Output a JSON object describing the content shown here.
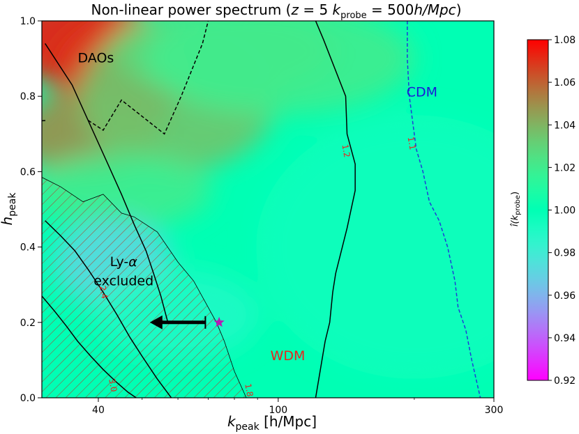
{
  "chart_data": {
    "type": "heatmap",
    "title_main": "Non-linear power spectrum (",
    "title_z": "z",
    "title_z_value": " = 5    ",
    "title_k": "k",
    "title_k_sub": "probe",
    "title_k_value": " = 500",
    "title_k_unit": "h/Mpc",
    "title_close": ")",
    "xlabel": "k",
    "xlabel_sub": "peak",
    "xlabel_unit": " [h/Mpc]",
    "ylabel": "h",
    "ylabel_sub": "peak",
    "x_scale": "log",
    "xlim": [
      30,
      300
    ],
    "ylim": [
      0.0,
      1.0
    ],
    "x_ticks": [
      40,
      100,
      300
    ],
    "x_tick_labels": [
      "40",
      "100",
      "300"
    ],
    "y_ticks": [
      0.0,
      0.2,
      0.4,
      0.6,
      0.8,
      1.0
    ],
    "y_tick_labels": [
      "0.0",
      "0.2",
      "0.4",
      "0.6",
      "0.8",
      "1.0"
    ],
    "colorbar": {
      "label": "î(k",
      "label_sub": "probe",
      "label_close": ")",
      "range": [
        0.92,
        1.08
      ],
      "ticks": [
        0.92,
        0.94,
        0.96,
        0.98,
        1.0,
        1.02,
        1.04,
        1.06,
        1.08
      ],
      "tick_labels": [
        "0.92",
        "0.94",
        "0.96",
        "0.98",
        "1.00",
        "1.02",
        "1.04",
        "1.06",
        "1.08"
      ],
      "colormap": "rainbow"
    },
    "background_value": 1.0,
    "field_blobs": [
      {
        "x": 36,
        "y": 0.95,
        "value": 1.075,
        "sx": 0.18,
        "sy": 0.12
      },
      {
        "x": 45,
        "y": 0.86,
        "value": 1.07,
        "sx": 0.15,
        "sy": 0.14
      },
      {
        "x": 38,
        "y": 0.7,
        "value": 1.05,
        "sx": 0.16,
        "sy": 0.12
      },
      {
        "x": 60,
        "y": 0.8,
        "value": 1.035,
        "sx": 0.22,
        "sy": 0.2
      },
      {
        "x": 75,
        "y": 0.92,
        "value": 1.03,
        "sx": 0.25,
        "sy": 0.12
      },
      {
        "x": 100,
        "y": 0.9,
        "value": 1.02,
        "sx": 0.3,
        "sy": 0.15
      },
      {
        "x": 45,
        "y": 0.55,
        "value": 1.02,
        "sx": 0.2,
        "sy": 0.1
      },
      {
        "x": 43,
        "y": 0.36,
        "value": 0.972,
        "sx": 0.13,
        "sy": 0.12
      },
      {
        "x": 60,
        "y": 0.22,
        "value": 0.99,
        "sx": 0.18,
        "sy": 0.12
      },
      {
        "x": 200,
        "y": 0.4,
        "value": 0.995,
        "sx": 0.35,
        "sy": 0.35
      }
    ],
    "contours": [
      {
        "level": "dashed",
        "color": "#000000",
        "dash": true,
        "x": [
          38,
          41,
          45,
          56,
          61,
          68,
          70
        ],
        "y": [
          0.736,
          0.71,
          0.79,
          0.7,
          0.8,
          0.94,
          1.0
        ]
      },
      {
        "level": "dashed",
        "color": "#000000",
        "dash": true,
        "x": [
          30,
          30.8
        ],
        "y": [
          0.735,
          0.736
        ]
      },
      {
        "level": "1.2",
        "color": "#000000",
        "dash": false,
        "x": [
          121,
          126,
          141,
          142,
          148,
          148,
          142,
          134,
          132,
          130,
          127,
          121
        ],
        "y": [
          1.0,
          0.95,
          0.8,
          0.7,
          0.62,
          0.55,
          0.45,
          0.33,
          0.28,
          0.2,
          0.15,
          0.0
        ]
      },
      {
        "level": "2.4",
        "color": "#000000",
        "dash": false,
        "x": [
          30.5,
          35,
          38.5,
          42,
          45,
          48,
          51,
          53,
          55,
          57
        ],
        "y": [
          0.94,
          0.83,
          0.72,
          0.62,
          0.54,
          0.46,
          0.39,
          0.33,
          0.27,
          0.2
        ]
      },
      {
        "level": "3.0",
        "color": "#000000",
        "dash": false,
        "x": [
          30.5,
          33,
          35.5,
          38,
          41,
          44,
          47,
          50,
          54,
          58
        ],
        "y": [
          0.47,
          0.43,
          0.39,
          0.34,
          0.28,
          0.22,
          0.16,
          0.11,
          0.05,
          0.0
        ]
      },
      {
        "level": "1.8",
        "color": "#000000",
        "dash": false,
        "x": [
          30,
          32,
          34,
          36,
          38.5,
          41,
          44,
          46.5,
          48.5
        ],
        "y": [
          0.27,
          0.23,
          0.19,
          0.15,
          0.11,
          0.075,
          0.04,
          0.015,
          0.0
        ]
      },
      {
        "level": "1.1",
        "color": "#1f3bd8",
        "dash": true,
        "x": [
          193,
          193,
          195,
          202,
          209,
          216,
          227,
          237,
          246,
          250,
          260,
          268,
          280
        ],
        "y": [
          1.0,
          0.9,
          0.8,
          0.66,
          0.6,
          0.52,
          0.47,
          0.4,
          0.31,
          0.24,
          0.18,
          0.1,
          0.0
        ]
      }
    ],
    "contour_labels": [
      {
        "text": "1.2",
        "x": 141,
        "y": 0.655
      },
      {
        "text": "2.4",
        "x": 41,
        "y": 0.28
      },
      {
        "text": "3.0",
        "x": 43,
        "y": 0.033
      },
      {
        "text": "1.8",
        "x": 86,
        "y": 0.02
      },
      {
        "text": "1.1",
        "x": 197,
        "y": 0.675
      }
    ],
    "excluded_region": {
      "label_line1": "Ly-",
      "label_alpha": "α",
      "label_line2": "excluded",
      "x": [
        30,
        30,
        33,
        37,
        41,
        45,
        48,
        54,
        60,
        65,
        70,
        73,
        76,
        80,
        85
      ],
      "y": [
        0.0,
        0.585,
        0.56,
        0.52,
        0.54,
        0.49,
        0.48,
        0.44,
        0.36,
        0.31,
        0.24,
        0.2,
        0.15,
        0.07,
        0.0
      ]
    },
    "annotations": [
      {
        "text": "DAOs",
        "x": 39.5,
        "y": 0.9,
        "color": "#000000"
      },
      {
        "text": "CDM",
        "x": 208,
        "y": 0.81,
        "color": "#1a1ad8"
      },
      {
        "text": "WDM",
        "x": 105,
        "y": 0.11,
        "color": "#e8231c"
      }
    ],
    "star": {
      "x": 74,
      "y": 0.2,
      "color": "#b51cb5"
    },
    "arrow": {
      "x_start": 69,
      "x_end": 52,
      "y": 0.2
    }
  }
}
